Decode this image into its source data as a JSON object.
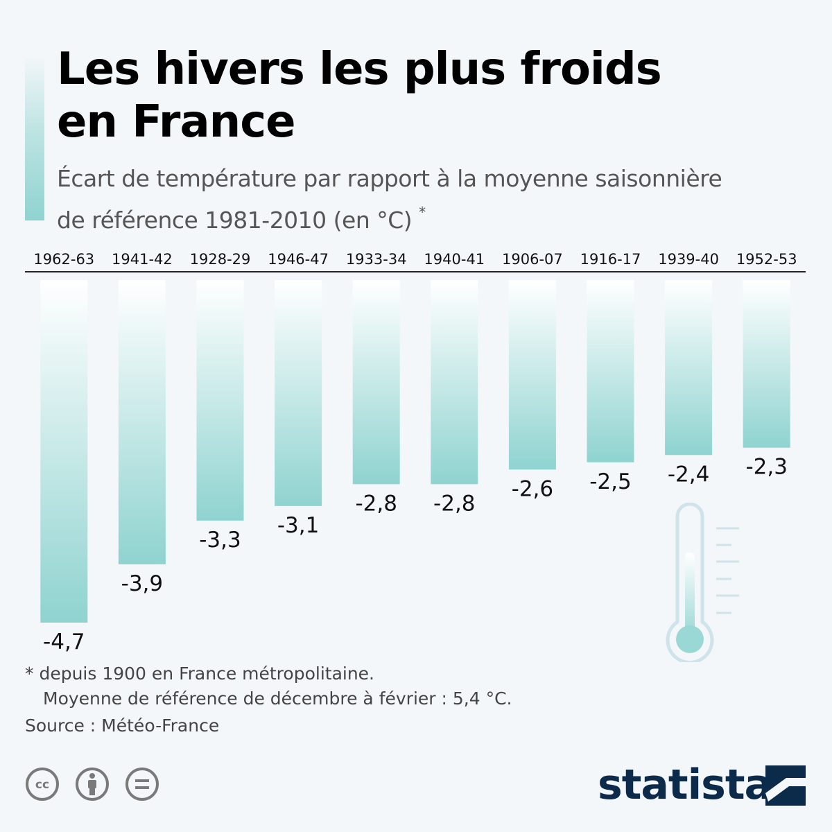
{
  "header": {
    "title_line1": "Les hivers les plus froids",
    "title_line2": "en France",
    "subtitle_line1": "Écart de température par rapport à la moyenne saisonnière",
    "subtitle_line2": "de référence 1981-2010 (en °C)",
    "subtitle_marker": "*"
  },
  "chart_data": {
    "type": "bar",
    "orientation": "vertical-downward",
    "categories": [
      "1962-63",
      "1941-42",
      "1928-29",
      "1946-47",
      "1933-34",
      "1940-41",
      "1906-07",
      "1916-17",
      "1939-40",
      "1952-53"
    ],
    "values": [
      -4.7,
      -3.9,
      -3.3,
      -3.1,
      -2.8,
      -2.8,
      -2.6,
      -2.5,
      -2.4,
      -2.3
    ],
    "value_labels": [
      "-4,7",
      "-3,9",
      "-3,3",
      "-3,1",
      "-2,8",
      "-2,8",
      "-2,6",
      "-2,5",
      "-2,4",
      "-2,3"
    ],
    "ylim": [
      -4.7,
      0
    ],
    "grid": false,
    "colors": {
      "bar_top": "#ffffff",
      "bar_bottom": "#8fd3d0",
      "baseline": "#222222"
    }
  },
  "footer": {
    "note_line1": "* depuis 1900 en France métropolitaine.",
    "note_line2": "Moyenne de référence de décembre à février : 5,4 °C.",
    "source": "Source : Météo-France",
    "brand": "statista",
    "license_icons": [
      "cc-icon",
      "attribution-icon",
      "no-derivatives-icon"
    ]
  }
}
